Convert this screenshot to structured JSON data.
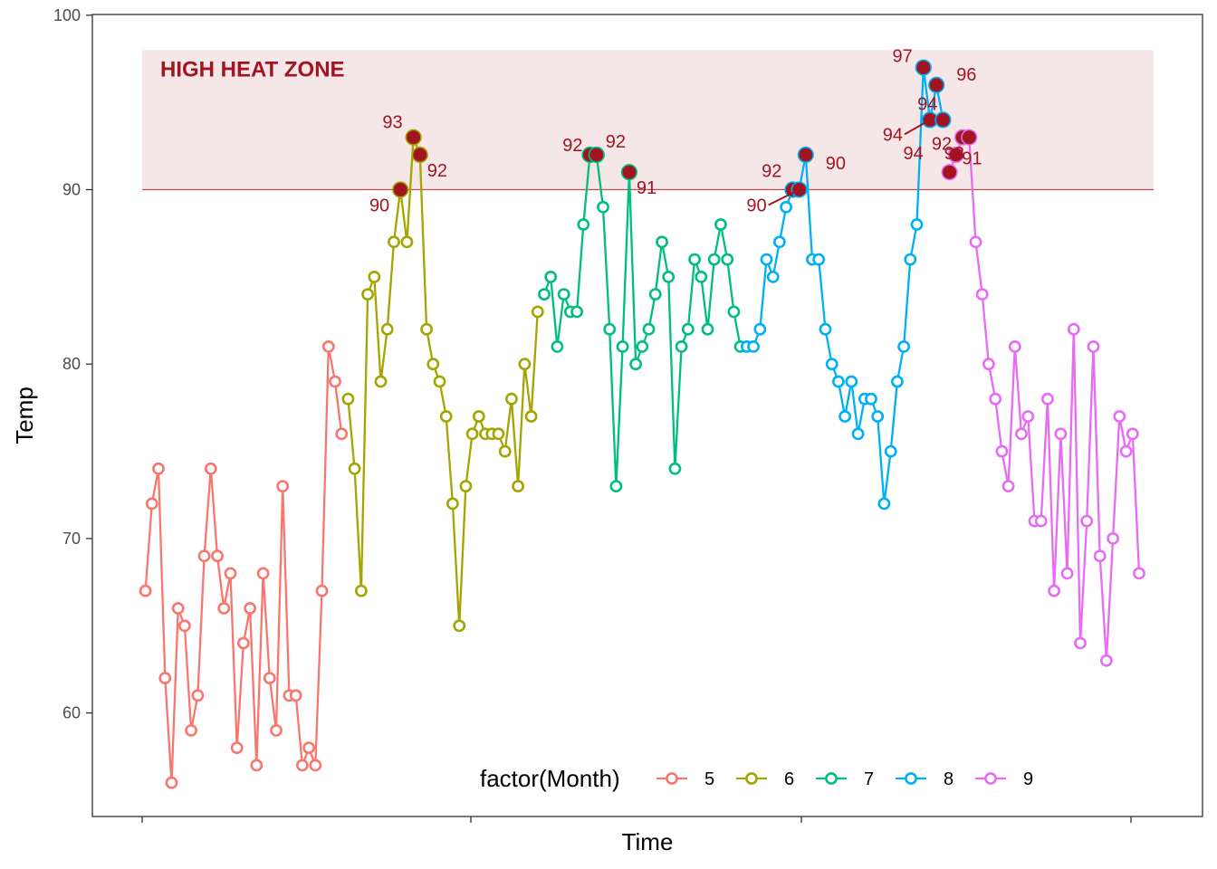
{
  "chart_data": {
    "type": "line",
    "title": "",
    "xlabel": "Time",
    "ylabel": "Temp",
    "ylim": [
      54,
      100
    ],
    "yticks": [
      "60",
      "70",
      "80",
      "90",
      "100"
    ],
    "xticks_labeled": false,
    "grid": false,
    "legend": {
      "title": "factor(Month)",
      "position": "bottom-right",
      "labels": [
        "5",
        "6",
        "7",
        "8",
        "9"
      ]
    },
    "annotation": {
      "label": "HIGH HEAT ZONE",
      "ymin": 90,
      "ymax": 98,
      "threshold": 90,
      "color": "#a01520"
    },
    "series": [
      {
        "name": "5",
        "color": "#f8766d",
        "start": 1,
        "values": [
          67,
          72,
          74,
          62,
          56,
          66,
          65,
          59,
          61,
          69,
          74,
          69,
          66,
          68,
          58,
          64,
          66,
          57,
          68,
          62,
          59,
          73,
          61,
          61,
          57,
          58,
          57,
          67,
          81,
          79,
          76
        ]
      },
      {
        "name": "6",
        "color": "#a3a500",
        "start": 32,
        "values": [
          78,
          74,
          67,
          84,
          85,
          79,
          82,
          87,
          90,
          87,
          93,
          92,
          82,
          80,
          79,
          77,
          72,
          65,
          73,
          76,
          77,
          76,
          76,
          76,
          75,
          78,
          73,
          80,
          77,
          83
        ]
      },
      {
        "name": "7",
        "color": "#00bf7d",
        "start": 62,
        "values": [
          84,
          85,
          81,
          84,
          83,
          83,
          88,
          92,
          92,
          89,
          82,
          73,
          81,
          91,
          80,
          81,
          82,
          84,
          87,
          85,
          74,
          81,
          82,
          86,
          85,
          82,
          86,
          88,
          86,
          83,
          81
        ]
      },
      {
        "name": "8",
        "color": "#00b0f6",
        "start": 93,
        "values": [
          81,
          81,
          82,
          86,
          85,
          87,
          89,
          90,
          90,
          92,
          86,
          86,
          82,
          80,
          79,
          77,
          79,
          76,
          78,
          78,
          77,
          72,
          75,
          79,
          81,
          86,
          88,
          97,
          94,
          96,
          94
        ]
      },
      {
        "name": "9",
        "color": "#e76bf3",
        "start": 124,
        "values": [
          91,
          92,
          93,
          93,
          87,
          84,
          80,
          78,
          75,
          73,
          81,
          76,
          77,
          71,
          71,
          78,
          67,
          76,
          68,
          82,
          64,
          71,
          81,
          69,
          63,
          70,
          77,
          75,
          76,
          68
        ]
      }
    ],
    "point_labels": [
      "90",
      "93",
      "92",
      "92",
      "92",
      "91",
      "92",
      "90",
      "90",
      "97",
      "94",
      "96",
      "94",
      "93",
      "94",
      "92",
      "91",
      "93"
    ]
  }
}
